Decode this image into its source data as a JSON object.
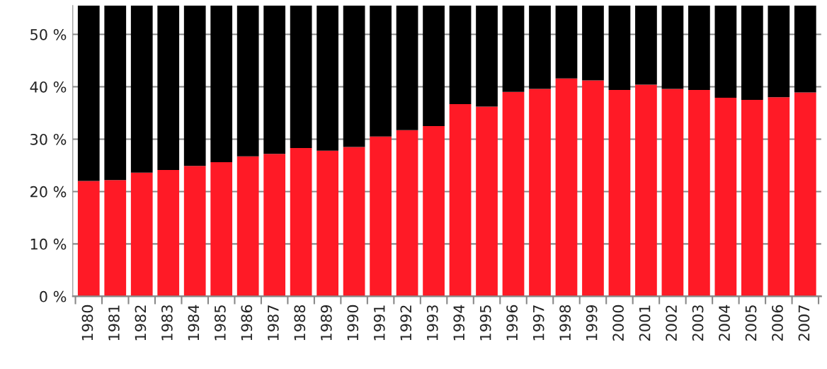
{
  "chart_data": {
    "type": "bar",
    "stacked": true,
    "categories": [
      "1980",
      "1981",
      "1982",
      "1983",
      "1984",
      "1985",
      "1986",
      "1987",
      "1988",
      "1989",
      "1990",
      "1991",
      "1992",
      "1993",
      "1994",
      "1995",
      "1996",
      "1997",
      "1998",
      "1999",
      "2000",
      "2001",
      "2002",
      "2003",
      "2004",
      "2005",
      "2006",
      "2007"
    ],
    "series": [
      {
        "color": "#ff1a26",
        "values": [
          22.0,
          22.2,
          23.6,
          24.1,
          24.9,
          25.6,
          26.7,
          27.2,
          28.3,
          27.8,
          28.5,
          30.5,
          31.7,
          32.5,
          36.7,
          36.2,
          39.0,
          39.6,
          41.6,
          41.2,
          39.4,
          40.4,
          39.6,
          39.4,
          37.9,
          37.5,
          38.0,
          38.9
        ]
      },
      {
        "color": "#000000",
        "values": [
          33.5,
          33.3,
          31.9,
          31.4,
          30.6,
          29.9,
          28.8,
          28.3,
          27.2,
          27.7,
          27.0,
          25.0,
          23.8,
          23.0,
          18.8,
          19.3,
          16.5,
          15.9,
          13.9,
          14.3,
          16.1,
          15.1,
          15.9,
          16.1,
          17.6,
          18.0,
          17.5,
          16.6
        ]
      }
    ],
    "ylim": [
      0,
      55.5
    ],
    "yticks": [
      {
        "value": 0,
        "label": "0 %"
      },
      {
        "value": 10,
        "label": "10 %"
      },
      {
        "value": 20,
        "label": "20 %"
      },
      {
        "value": 30,
        "label": "30 %"
      },
      {
        "value": 40,
        "label": "40 %"
      },
      {
        "value": 50,
        "label": "50 %"
      }
    ],
    "grid": "y",
    "legend": false
  }
}
